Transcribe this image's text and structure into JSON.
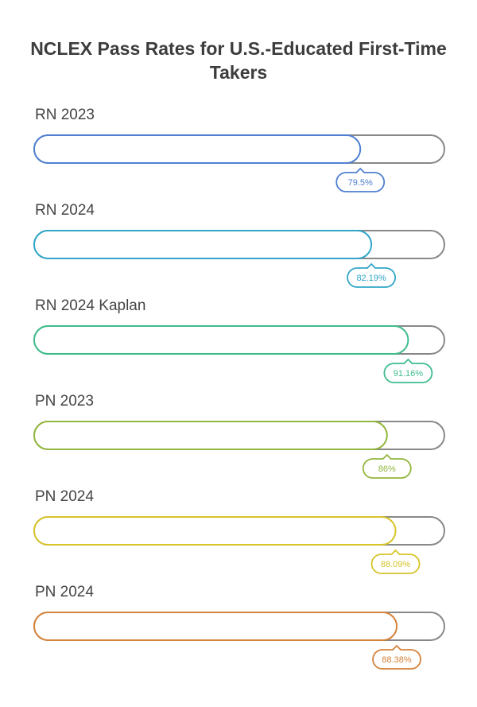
{
  "chart_data": {
    "type": "bar",
    "title": "NCLEX Pass Rates for U.S.-Educated First-Time Takers",
    "categories": [
      "RN 2023",
      "RN 2024",
      "RN 2024 Kaplan",
      "PN 2023",
      "PN 2024",
      "PN 2024"
    ],
    "values": [
      79.5,
      82.19,
      91.16,
      86,
      88.09,
      88.38
    ],
    "value_labels": [
      "79.5%",
      "82.19%",
      "91.16%",
      "86%",
      "88.09%",
      "88.38%"
    ],
    "ylim": [
      0,
      100
    ],
    "orientation": "horizontal",
    "track_color": "#888888",
    "colors": [
      "#4f7fd1",
      "#30a6c9",
      "#3dbc8c",
      "#93b63c",
      "#d6c42a",
      "#d5823a"
    ],
    "grid": false,
    "legend": "none"
  }
}
